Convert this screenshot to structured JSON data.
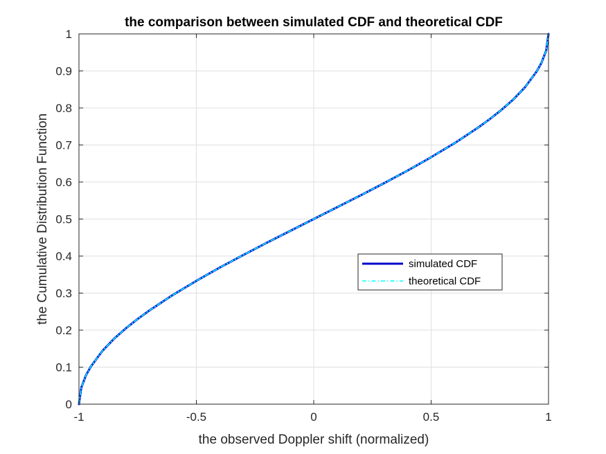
{
  "chart_data": {
    "type": "line",
    "title": "the comparison between simulated CDF and theoretical CDF",
    "xlabel": "the observed Doppler shift (normalized)",
    "ylabel": "the Cumulative Distribution Function",
    "xlim": [
      -1,
      1
    ],
    "ylim": [
      0,
      1
    ],
    "xticks": [
      -1,
      -0.5,
      0,
      0.5,
      1
    ],
    "xtick_labels": [
      "-1",
      "-0.5",
      "0",
      "0.5",
      "1"
    ],
    "yticks": [
      0,
      0.1,
      0.2,
      0.3,
      0.4,
      0.5,
      0.6,
      0.7,
      0.8,
      0.9,
      1
    ],
    "ytick_labels": [
      "0",
      "0.1",
      "0.2",
      "0.3",
      "0.4",
      "0.5",
      "0.6",
      "0.7",
      "0.8",
      "0.9",
      "1"
    ],
    "grid": true,
    "legend_position": "center-right",
    "series": [
      {
        "name": "simulated CDF",
        "color": "#0000cc",
        "style": "solid",
        "x": [
          -1,
          -0.99,
          -0.97,
          -0.95,
          -0.9,
          -0.85,
          -0.8,
          -0.75,
          -0.7,
          -0.6,
          -0.5,
          -0.4,
          -0.3,
          -0.2,
          -0.1,
          0,
          0.1,
          0.2,
          0.3,
          0.4,
          0.5,
          0.6,
          0.7,
          0.75,
          0.8,
          0.85,
          0.9,
          0.95,
          0.97,
          0.99,
          1
        ],
        "y": [
          0,
          0.045,
          0.078,
          0.101,
          0.144,
          0.177,
          0.205,
          0.23,
          0.253,
          0.295,
          0.333,
          0.369,
          0.403,
          0.436,
          0.468,
          0.5,
          0.532,
          0.564,
          0.597,
          0.631,
          0.667,
          0.705,
          0.747,
          0.77,
          0.795,
          0.823,
          0.856,
          0.899,
          0.922,
          0.955,
          1
        ]
      },
      {
        "name": "theoretical CDF",
        "color": "#00ffff",
        "style": "dashdot",
        "x": [
          -1,
          -0.99,
          -0.97,
          -0.95,
          -0.9,
          -0.85,
          -0.8,
          -0.75,
          -0.7,
          -0.6,
          -0.5,
          -0.4,
          -0.3,
          -0.2,
          -0.1,
          0,
          0.1,
          0.2,
          0.3,
          0.4,
          0.5,
          0.6,
          0.7,
          0.75,
          0.8,
          0.85,
          0.9,
          0.95,
          0.97,
          0.99,
          1
        ],
        "y": [
          0,
          0.045,
          0.078,
          0.101,
          0.144,
          0.177,
          0.205,
          0.23,
          0.253,
          0.295,
          0.333,
          0.369,
          0.403,
          0.436,
          0.468,
          0.5,
          0.532,
          0.564,
          0.597,
          0.631,
          0.667,
          0.705,
          0.747,
          0.77,
          0.795,
          0.823,
          0.856,
          0.899,
          0.922,
          0.955,
          1
        ]
      }
    ]
  }
}
